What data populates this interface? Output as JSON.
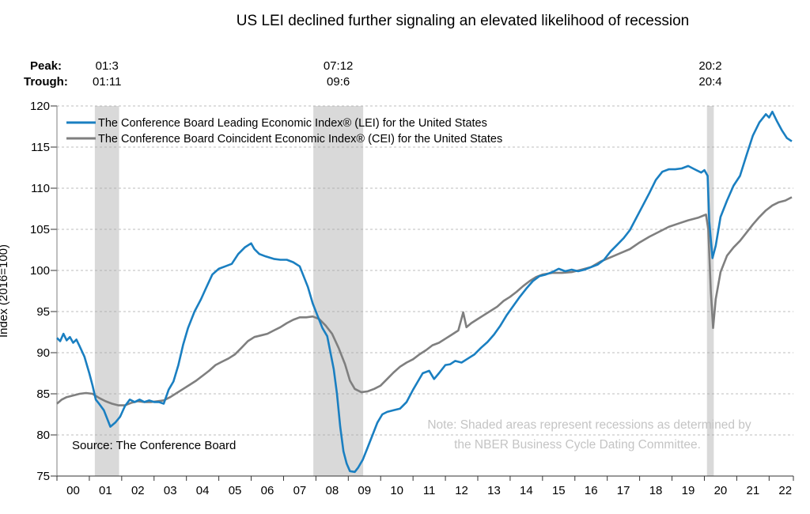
{
  "chart_data": {
    "type": "line",
    "title": "US LEI declined further signaling an elevated likelihood of recession",
    "ylabel": "Index (2016=100)",
    "ylim": [
      75,
      120
    ],
    "yticks": [
      75,
      80,
      85,
      90,
      95,
      100,
      105,
      110,
      115,
      120
    ],
    "xlim": [
      2000.0,
      2022.75
    ],
    "xtick_labels": [
      "00",
      "01",
      "02",
      "03",
      "04",
      "05",
      "06",
      "07",
      "08",
      "09",
      "10",
      "11",
      "12",
      "13",
      "14",
      "15",
      "16",
      "17",
      "18",
      "19",
      "20",
      "21",
      "22"
    ],
    "grid": "horizontal dashed",
    "legend_position": "top-left",
    "peak_label": "Peak:",
    "trough_label": "Trough:",
    "recessions": [
      {
        "peak": "01:3",
        "trough": "01:11",
        "start": 2001.17,
        "end": 2001.92
      },
      {
        "peak": "07:12",
        "trough": "09:6",
        "start": 2007.92,
        "end": 2009.46
      },
      {
        "peak": "20:2",
        "trough": "20:4",
        "start": 2020.08,
        "end": 2020.29
      }
    ],
    "series": [
      {
        "name": "The Conference Board Leading Economic Index® (LEI) for the United States",
        "color": "#1a7fc1",
        "points": [
          [
            2000.0,
            91.8
          ],
          [
            2000.1,
            91.4
          ],
          [
            2000.2,
            92.3
          ],
          [
            2000.3,
            91.5
          ],
          [
            2000.4,
            91.9
          ],
          [
            2000.5,
            91.2
          ],
          [
            2000.6,
            91.6
          ],
          [
            2000.7,
            90.8
          ],
          [
            2000.85,
            89.5
          ],
          [
            2001.0,
            87.5
          ],
          [
            2001.1,
            86.0
          ],
          [
            2001.2,
            84.3
          ],
          [
            2001.3,
            83.8
          ],
          [
            2001.45,
            83.0
          ],
          [
            2001.55,
            82.0
          ],
          [
            2001.65,
            81.0
          ],
          [
            2001.8,
            81.5
          ],
          [
            2001.95,
            82.2
          ],
          [
            2002.1,
            83.5
          ],
          [
            2002.25,
            84.3
          ],
          [
            2002.4,
            84.0
          ],
          [
            2002.55,
            84.3
          ],
          [
            2002.7,
            84.0
          ],
          [
            2002.85,
            84.2
          ],
          [
            2003.0,
            84.0
          ],
          [
            2003.15,
            84.0
          ],
          [
            2003.3,
            83.8
          ],
          [
            2003.45,
            85.5
          ],
          [
            2003.6,
            86.5
          ],
          [
            2003.75,
            88.5
          ],
          [
            2003.9,
            91.0
          ],
          [
            2004.05,
            93.0
          ],
          [
            2004.25,
            95.0
          ],
          [
            2004.45,
            96.5
          ],
          [
            2004.6,
            97.8
          ],
          [
            2004.8,
            99.5
          ],
          [
            2005.0,
            100.2
          ],
          [
            2005.2,
            100.5
          ],
          [
            2005.4,
            100.8
          ],
          [
            2005.6,
            102.0
          ],
          [
            2005.8,
            102.8
          ],
          [
            2006.0,
            103.3
          ],
          [
            2006.1,
            102.6
          ],
          [
            2006.25,
            102.0
          ],
          [
            2006.45,
            101.7
          ],
          [
            2006.7,
            101.4
          ],
          [
            2006.9,
            101.3
          ],
          [
            2007.1,
            101.3
          ],
          [
            2007.3,
            101.0
          ],
          [
            2007.5,
            100.5
          ],
          [
            2007.6,
            99.5
          ],
          [
            2007.75,
            98.0
          ],
          [
            2007.9,
            96.0
          ],
          [
            2008.05,
            94.5
          ],
          [
            2008.2,
            93.0
          ],
          [
            2008.35,
            92.0
          ],
          [
            2008.45,
            90.0
          ],
          [
            2008.55,
            88.0
          ],
          [
            2008.65,
            85.0
          ],
          [
            2008.75,
            81.0
          ],
          [
            2008.85,
            78.0
          ],
          [
            2008.95,
            76.5
          ],
          [
            2009.05,
            75.6
          ],
          [
            2009.2,
            75.5
          ],
          [
            2009.3,
            76.0
          ],
          [
            2009.45,
            77.0
          ],
          [
            2009.6,
            78.5
          ],
          [
            2009.75,
            80.0
          ],
          [
            2009.9,
            81.5
          ],
          [
            2010.05,
            82.5
          ],
          [
            2010.2,
            82.8
          ],
          [
            2010.4,
            83.0
          ],
          [
            2010.6,
            83.2
          ],
          [
            2010.8,
            84.0
          ],
          [
            2011.0,
            85.5
          ],
          [
            2011.15,
            86.5
          ],
          [
            2011.3,
            87.5
          ],
          [
            2011.5,
            87.8
          ],
          [
            2011.65,
            86.8
          ],
          [
            2011.8,
            87.5
          ],
          [
            2012.0,
            88.5
          ],
          [
            2012.15,
            88.6
          ],
          [
            2012.3,
            89.0
          ],
          [
            2012.5,
            88.8
          ],
          [
            2012.7,
            89.3
          ],
          [
            2012.9,
            89.8
          ],
          [
            2013.1,
            90.6
          ],
          [
            2013.3,
            91.3
          ],
          [
            2013.5,
            92.2
          ],
          [
            2013.7,
            93.3
          ],
          [
            2013.9,
            94.6
          ],
          [
            2014.1,
            95.7
          ],
          [
            2014.3,
            96.8
          ],
          [
            2014.5,
            97.8
          ],
          [
            2014.7,
            98.7
          ],
          [
            2014.9,
            99.3
          ],
          [
            2015.1,
            99.5
          ],
          [
            2015.3,
            99.8
          ],
          [
            2015.5,
            100.2
          ],
          [
            2015.7,
            99.9
          ],
          [
            2015.9,
            100.1
          ],
          [
            2016.1,
            99.9
          ],
          [
            2016.3,
            100.1
          ],
          [
            2016.5,
            100.4
          ],
          [
            2016.7,
            100.7
          ],
          [
            2016.9,
            101.3
          ],
          [
            2017.1,
            102.3
          ],
          [
            2017.3,
            103.1
          ],
          [
            2017.5,
            103.9
          ],
          [
            2017.7,
            104.9
          ],
          [
            2017.9,
            106.4
          ],
          [
            2018.1,
            107.9
          ],
          [
            2018.3,
            109.4
          ],
          [
            2018.5,
            111.0
          ],
          [
            2018.7,
            112.0
          ],
          [
            2018.9,
            112.3
          ],
          [
            2019.1,
            112.3
          ],
          [
            2019.3,
            112.4
          ],
          [
            2019.5,
            112.7
          ],
          [
            2019.7,
            112.3
          ],
          [
            2019.9,
            111.9
          ],
          [
            2020.0,
            112.2
          ],
          [
            2020.1,
            111.5
          ],
          [
            2020.15,
            106.0
          ],
          [
            2020.25,
            101.5
          ],
          [
            2020.35,
            103.0
          ],
          [
            2020.5,
            106.5
          ],
          [
            2020.7,
            108.5
          ],
          [
            2020.9,
            110.3
          ],
          [
            2021.1,
            111.5
          ],
          [
            2021.3,
            114.0
          ],
          [
            2021.5,
            116.4
          ],
          [
            2021.7,
            118.0
          ],
          [
            2021.9,
            119.0
          ],
          [
            2022.0,
            118.6
          ],
          [
            2022.1,
            119.3
          ],
          [
            2022.25,
            118.1
          ],
          [
            2022.4,
            117.0
          ],
          [
            2022.55,
            116.1
          ],
          [
            2022.7,
            115.7
          ]
        ]
      },
      {
        "name": "The Conference Board Coincident Economic Index® (CEI) for the United States",
        "color": "#7f7f7f",
        "points": [
          [
            2000.0,
            83.8
          ],
          [
            2000.15,
            84.3
          ],
          [
            2000.3,
            84.6
          ],
          [
            2000.5,
            84.8
          ],
          [
            2000.7,
            85.0
          ],
          [
            2000.9,
            85.1
          ],
          [
            2001.1,
            85.0
          ],
          [
            2001.3,
            84.5
          ],
          [
            2001.5,
            84.1
          ],
          [
            2001.7,
            83.8
          ],
          [
            2001.9,
            83.6
          ],
          [
            2002.1,
            83.6
          ],
          [
            2002.3,
            83.9
          ],
          [
            2002.5,
            84.1
          ],
          [
            2002.7,
            84.0
          ],
          [
            2002.9,
            84.0
          ],
          [
            2003.1,
            84.1
          ],
          [
            2003.3,
            84.2
          ],
          [
            2003.5,
            84.6
          ],
          [
            2003.7,
            85.1
          ],
          [
            2003.9,
            85.6
          ],
          [
            2004.1,
            86.1
          ],
          [
            2004.3,
            86.6
          ],
          [
            2004.5,
            87.2
          ],
          [
            2004.7,
            87.8
          ],
          [
            2004.9,
            88.5
          ],
          [
            2005.1,
            88.9
          ],
          [
            2005.3,
            89.3
          ],
          [
            2005.5,
            89.8
          ],
          [
            2005.7,
            90.6
          ],
          [
            2005.9,
            91.4
          ],
          [
            2006.1,
            91.9
          ],
          [
            2006.3,
            92.1
          ],
          [
            2006.5,
            92.3
          ],
          [
            2006.7,
            92.7
          ],
          [
            2006.9,
            93.1
          ],
          [
            2007.1,
            93.6
          ],
          [
            2007.3,
            94.0
          ],
          [
            2007.5,
            94.3
          ],
          [
            2007.7,
            94.3
          ],
          [
            2007.9,
            94.4
          ],
          [
            2008.1,
            94.1
          ],
          [
            2008.3,
            93.3
          ],
          [
            2008.5,
            92.3
          ],
          [
            2008.7,
            90.6
          ],
          [
            2008.9,
            88.6
          ],
          [
            2009.05,
            86.6
          ],
          [
            2009.2,
            85.6
          ],
          [
            2009.4,
            85.2
          ],
          [
            2009.6,
            85.3
          ],
          [
            2009.8,
            85.6
          ],
          [
            2010.0,
            86.0
          ],
          [
            2010.2,
            86.8
          ],
          [
            2010.4,
            87.6
          ],
          [
            2010.6,
            88.3
          ],
          [
            2010.8,
            88.8
          ],
          [
            2011.0,
            89.2
          ],
          [
            2011.2,
            89.8
          ],
          [
            2011.4,
            90.3
          ],
          [
            2011.6,
            90.9
          ],
          [
            2011.8,
            91.2
          ],
          [
            2012.0,
            91.7
          ],
          [
            2012.2,
            92.2
          ],
          [
            2012.4,
            92.7
          ],
          [
            2012.55,
            94.9
          ],
          [
            2012.65,
            93.1
          ],
          [
            2012.8,
            93.6
          ],
          [
            2013.0,
            94.1
          ],
          [
            2013.2,
            94.6
          ],
          [
            2013.4,
            95.1
          ],
          [
            2013.6,
            95.6
          ],
          [
            2013.8,
            96.3
          ],
          [
            2014.0,
            96.8
          ],
          [
            2014.2,
            97.4
          ],
          [
            2014.4,
            98.1
          ],
          [
            2014.6,
            98.7
          ],
          [
            2014.8,
            99.2
          ],
          [
            2015.0,
            99.5
          ],
          [
            2015.3,
            99.7
          ],
          [
            2015.6,
            99.7
          ],
          [
            2015.9,
            99.8
          ],
          [
            2016.2,
            100.1
          ],
          [
            2016.5,
            100.4
          ],
          [
            2016.8,
            101.1
          ],
          [
            2017.1,
            101.6
          ],
          [
            2017.4,
            102.1
          ],
          [
            2017.7,
            102.6
          ],
          [
            2018.0,
            103.4
          ],
          [
            2018.3,
            104.1
          ],
          [
            2018.6,
            104.7
          ],
          [
            2018.9,
            105.3
          ],
          [
            2019.2,
            105.7
          ],
          [
            2019.5,
            106.1
          ],
          [
            2019.8,
            106.4
          ],
          [
            2020.05,
            106.8
          ],
          [
            2020.12,
            105.0
          ],
          [
            2020.2,
            97.5
          ],
          [
            2020.27,
            93.0
          ],
          [
            2020.35,
            96.5
          ],
          [
            2020.5,
            99.8
          ],
          [
            2020.7,
            101.8
          ],
          [
            2020.9,
            102.8
          ],
          [
            2021.1,
            103.6
          ],
          [
            2021.3,
            104.6
          ],
          [
            2021.5,
            105.6
          ],
          [
            2021.7,
            106.5
          ],
          [
            2021.9,
            107.3
          ],
          [
            2022.1,
            107.9
          ],
          [
            2022.3,
            108.3
          ],
          [
            2022.5,
            108.5
          ],
          [
            2022.7,
            108.9
          ]
        ]
      }
    ],
    "annotations": {
      "source": "Source: The Conference Board",
      "note_line1": "Note: Shaded areas represent recessions as determined by",
      "note_line2": "the NBER Business Cycle Dating Committee."
    }
  }
}
